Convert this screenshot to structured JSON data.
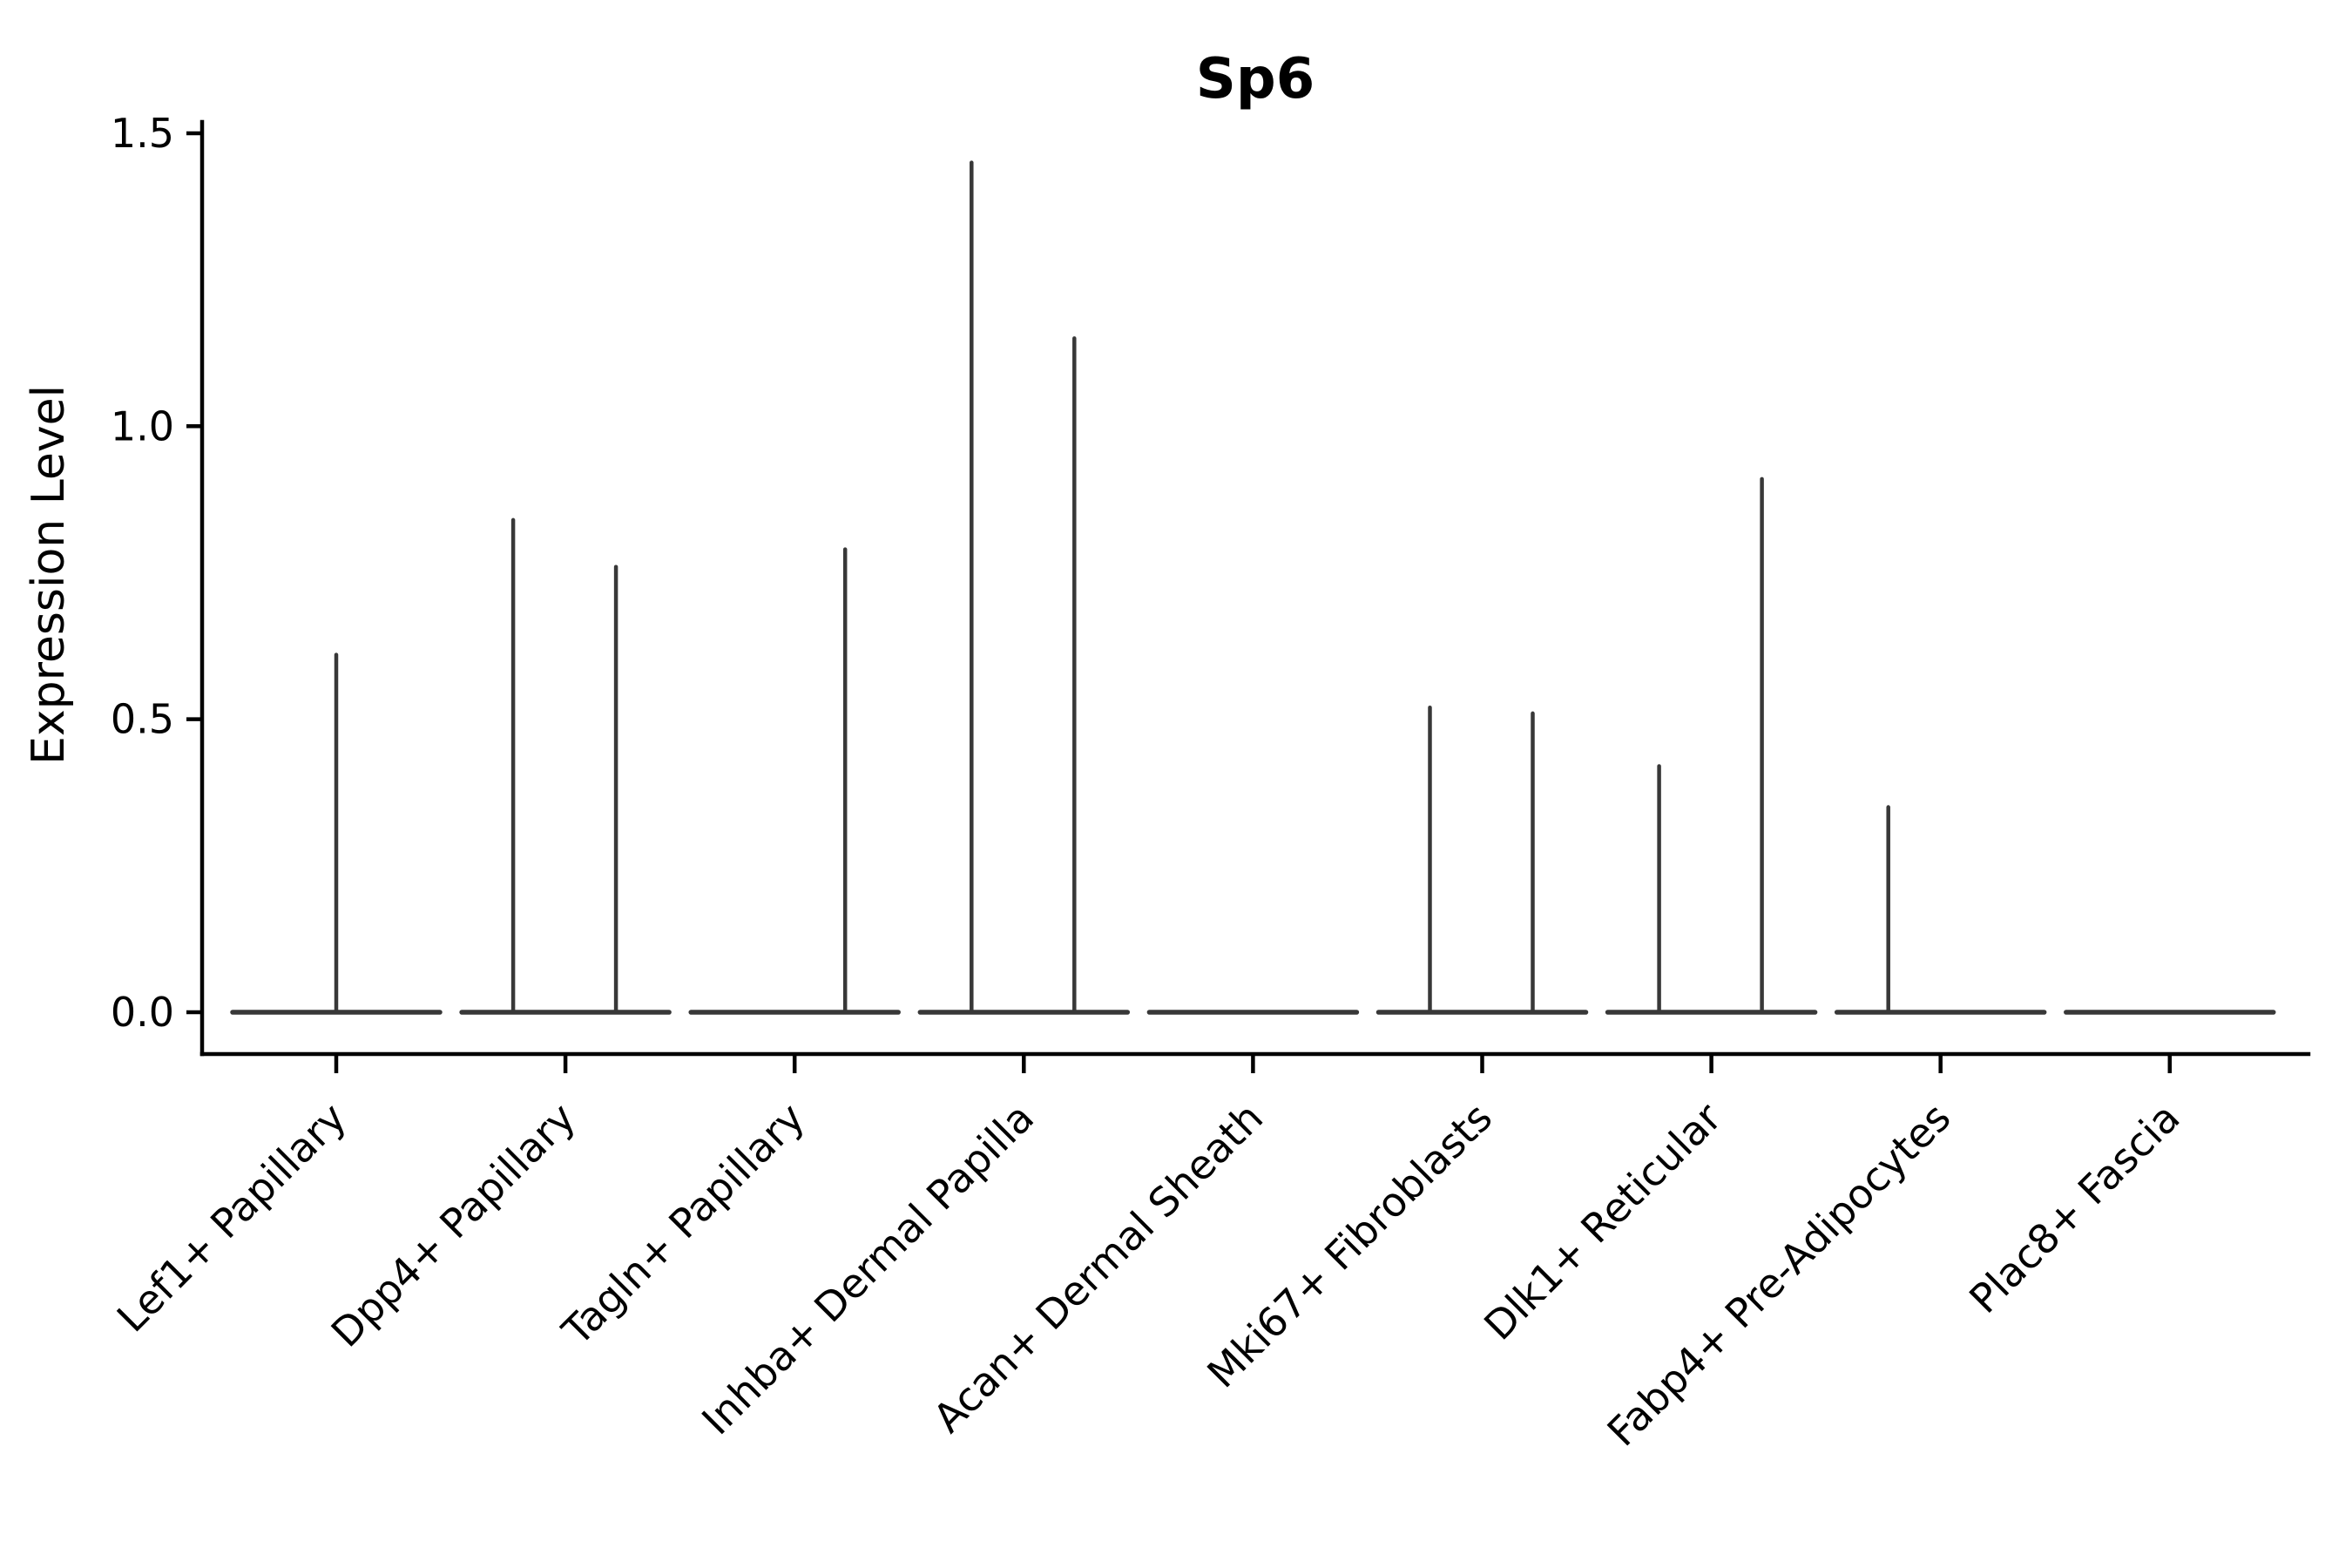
{
  "chart_data": {
    "type": "violin",
    "title": "Sp6",
    "ylabel": "Expression Level",
    "xlabel": "",
    "yticks": [
      0.0,
      0.5,
      1.0,
      1.5
    ],
    "ytick_labels": [
      "0.0",
      "0.5",
      "1.0",
      "1.5"
    ],
    "ylim": [
      0,
      1.5
    ],
    "grid": false,
    "legend": "none",
    "description": "Violin plot of Sp6 expression per cell type; nearly all density is a flat line at 0, with thin vertical spikes reaching the maximum expression of rare expressing cells. Several categories contain two side-by-side (dodged) violins.",
    "categories": [
      {
        "label": "Lef1+ Papillary",
        "violins": [
          {
            "pos": "center",
            "max": 0.61
          }
        ]
      },
      {
        "label": "Dpp4+ Papillary",
        "violins": [
          {
            "pos": "left",
            "max": 0.84
          },
          {
            "pos": "right",
            "max": 0.76
          }
        ]
      },
      {
        "label": "Tagln+ Papillary",
        "violins": [
          {
            "pos": "right",
            "max": 0.79
          }
        ]
      },
      {
        "label": "Inhba+ Dermal Papilla",
        "violins": [
          {
            "pos": "left",
            "max": 1.45
          },
          {
            "pos": "right",
            "max": 1.15
          }
        ]
      },
      {
        "label": "Acan+ Dermal Sheath",
        "violins": []
      },
      {
        "label": "Mki67+ Fibroblasts",
        "violins": [
          {
            "pos": "left",
            "max": 0.52
          },
          {
            "pos": "right",
            "max": 0.51
          }
        ]
      },
      {
        "label": "Dlk1+ Reticular",
        "violins": [
          {
            "pos": "left",
            "max": 0.42
          },
          {
            "pos": "right",
            "max": 0.91
          }
        ]
      },
      {
        "label": "Fabp4+ Pre-Adipocytes",
        "violins": [
          {
            "pos": "left",
            "max": 0.35
          }
        ]
      },
      {
        "label": "Plac8+ Fascia",
        "violins": []
      }
    ],
    "colors": {
      "violin": "#383838",
      "axis": "#000000",
      "text": "#000000",
      "background": "#ffffff"
    }
  }
}
